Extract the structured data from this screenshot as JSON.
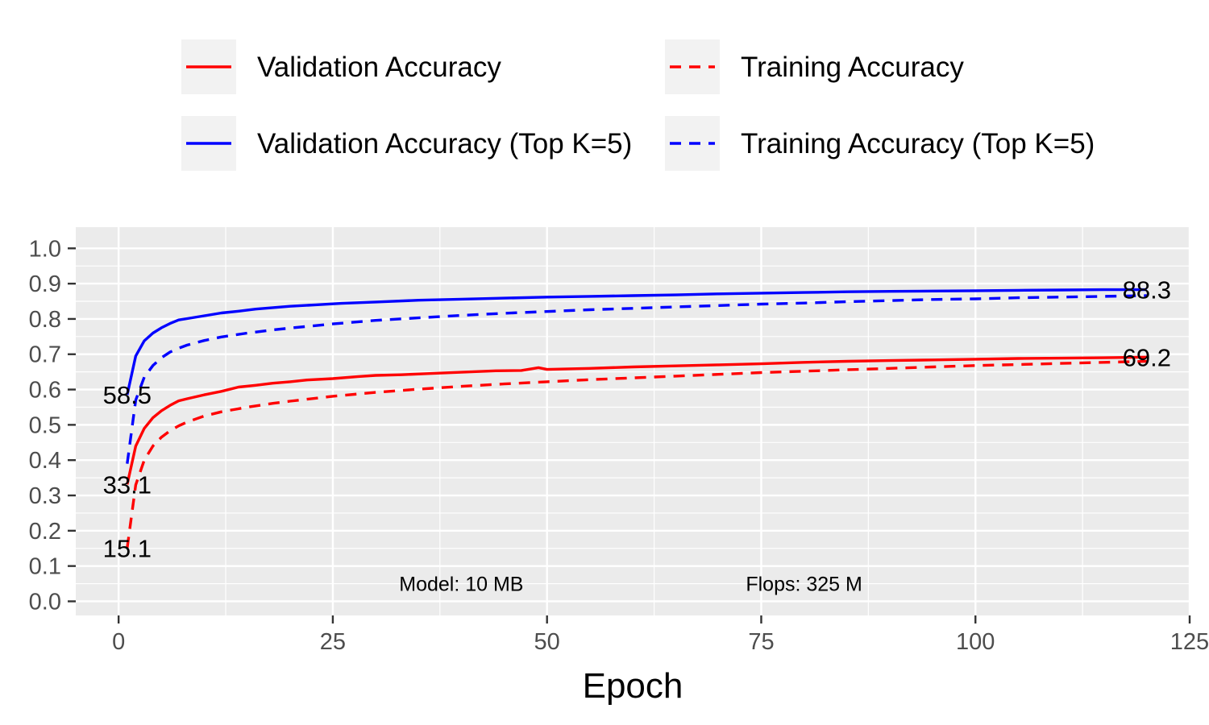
{
  "chart_data": {
    "type": "line",
    "xlabel": "Epoch",
    "ylabel": "",
    "xlim": [
      -5,
      125
    ],
    "ylim": [
      -0.04,
      1.06
    ],
    "x_ticks": [
      0,
      25,
      50,
      75,
      100,
      125
    ],
    "y_ticks": [
      0.0,
      0.1,
      0.2,
      0.3,
      0.4,
      0.5,
      0.6,
      0.7,
      0.8,
      0.9,
      1.0
    ],
    "x_tick_labels": [
      "0",
      "25",
      "50",
      "75",
      "100",
      "125"
    ],
    "y_tick_labels": [
      "0.0",
      "0.1",
      "0.2",
      "0.3",
      "0.4",
      "0.5",
      "0.6",
      "0.7",
      "0.8",
      "0.9",
      "1.0"
    ],
    "grid": true,
    "legend_position": "top",
    "series": [
      {
        "name": "Validation Accuracy",
        "color": "#ff0000",
        "dash": "solid",
        "points": [
          [
            1,
            0.331
          ],
          [
            2,
            0.44
          ],
          [
            3,
            0.49
          ],
          [
            4,
            0.52
          ],
          [
            5,
            0.54
          ],
          [
            6,
            0.555
          ],
          [
            7,
            0.568
          ],
          [
            8,
            0.574
          ],
          [
            10,
            0.585
          ],
          [
            12,
            0.595
          ],
          [
            14,
            0.607
          ],
          [
            16,
            0.612
          ],
          [
            18,
            0.618
          ],
          [
            20,
            0.622
          ],
          [
            22,
            0.627
          ],
          [
            25,
            0.631
          ],
          [
            28,
            0.637
          ],
          [
            30,
            0.64
          ],
          [
            33,
            0.642
          ],
          [
            36,
            0.645
          ],
          [
            40,
            0.649
          ],
          [
            44,
            0.653
          ],
          [
            47,
            0.654
          ],
          [
            49,
            0.662
          ],
          [
            50,
            0.657
          ],
          [
            55,
            0.66
          ],
          [
            60,
            0.664
          ],
          [
            65,
            0.667
          ],
          [
            70,
            0.67
          ],
          [
            75,
            0.673
          ],
          [
            80,
            0.677
          ],
          [
            85,
            0.68
          ],
          [
            90,
            0.682
          ],
          [
            95,
            0.684
          ],
          [
            100,
            0.686
          ],
          [
            105,
            0.688
          ],
          [
            110,
            0.689
          ],
          [
            115,
            0.69
          ],
          [
            120,
            0.692
          ]
        ]
      },
      {
        "name": "Training Accuracy",
        "color": "#ff0000",
        "dash": "dashed",
        "points": [
          [
            1,
            0.151
          ],
          [
            2,
            0.33
          ],
          [
            3,
            0.4
          ],
          [
            4,
            0.44
          ],
          [
            5,
            0.465
          ],
          [
            6,
            0.483
          ],
          [
            7,
            0.497
          ],
          [
            8,
            0.508
          ],
          [
            10,
            0.525
          ],
          [
            12,
            0.537
          ],
          [
            15,
            0.55
          ],
          [
            18,
            0.561
          ],
          [
            20,
            0.567
          ],
          [
            25,
            0.581
          ],
          [
            30,
            0.592
          ],
          [
            35,
            0.601
          ],
          [
            40,
            0.609
          ],
          [
            45,
            0.616
          ],
          [
            50,
            0.622
          ],
          [
            55,
            0.628
          ],
          [
            60,
            0.633
          ],
          [
            65,
            0.638
          ],
          [
            70,
            0.643
          ],
          [
            75,
            0.648
          ],
          [
            80,
            0.652
          ],
          [
            85,
            0.656
          ],
          [
            90,
            0.66
          ],
          [
            95,
            0.664
          ],
          [
            100,
            0.668
          ],
          [
            105,
            0.671
          ],
          [
            110,
            0.674
          ],
          [
            115,
            0.677
          ],
          [
            120,
            0.68
          ]
        ]
      },
      {
        "name": "Validation Accuracy (Top K=5)",
        "color": "#0000ff",
        "dash": "solid",
        "points": [
          [
            1,
            0.585
          ],
          [
            2,
            0.695
          ],
          [
            3,
            0.738
          ],
          [
            4,
            0.76
          ],
          [
            5,
            0.775
          ],
          [
            6,
            0.787
          ],
          [
            7,
            0.797
          ],
          [
            8,
            0.801
          ],
          [
            10,
            0.809
          ],
          [
            12,
            0.817
          ],
          [
            14,
            0.822
          ],
          [
            16,
            0.828
          ],
          [
            18,
            0.832
          ],
          [
            20,
            0.836
          ],
          [
            23,
            0.84
          ],
          [
            26,
            0.844
          ],
          [
            30,
            0.848
          ],
          [
            35,
            0.853
          ],
          [
            40,
            0.856
          ],
          [
            45,
            0.859
          ],
          [
            50,
            0.862
          ],
          [
            55,
            0.864
          ],
          [
            60,
            0.866
          ],
          [
            65,
            0.868
          ],
          [
            70,
            0.871
          ],
          [
            75,
            0.873
          ],
          [
            80,
            0.875
          ],
          [
            85,
            0.877
          ],
          [
            90,
            0.878
          ],
          [
            95,
            0.879
          ],
          [
            100,
            0.88
          ],
          [
            105,
            0.881
          ],
          [
            110,
            0.882
          ],
          [
            115,
            0.883
          ],
          [
            120,
            0.883
          ]
        ]
      },
      {
        "name": "Training Accuracy (Top K=5)",
        "color": "#0000ff",
        "dash": "dashed",
        "points": [
          [
            1,
            0.39
          ],
          [
            2,
            0.57
          ],
          [
            3,
            0.635
          ],
          [
            4,
            0.668
          ],
          [
            5,
            0.69
          ],
          [
            6,
            0.706
          ],
          [
            7,
            0.717
          ],
          [
            8,
            0.726
          ],
          [
            10,
            0.739
          ],
          [
            12,
            0.749
          ],
          [
            15,
            0.76
          ],
          [
            18,
            0.769
          ],
          [
            20,
            0.774
          ],
          [
            25,
            0.786
          ],
          [
            30,
            0.796
          ],
          [
            35,
            0.803
          ],
          [
            40,
            0.81
          ],
          [
            45,
            0.816
          ],
          [
            50,
            0.821
          ],
          [
            55,
            0.826
          ],
          [
            60,
            0.83
          ],
          [
            65,
            0.834
          ],
          [
            70,
            0.838
          ],
          [
            75,
            0.842
          ],
          [
            80,
            0.845
          ],
          [
            85,
            0.849
          ],
          [
            90,
            0.852
          ],
          [
            95,
            0.855
          ],
          [
            100,
            0.857
          ],
          [
            105,
            0.86
          ],
          [
            110,
            0.862
          ],
          [
            115,
            0.864
          ],
          [
            120,
            0.866
          ]
        ]
      }
    ],
    "value_labels": [
      {
        "text": "58.5",
        "x": 1,
        "y": 0.585
      },
      {
        "text": "33.1",
        "x": 1,
        "y": 0.331
      },
      {
        "text": "15.1",
        "x": 1,
        "y": 0.151
      },
      {
        "text": "88.3",
        "x": 120,
        "y": 0.883
      },
      {
        "text": "69.2",
        "x": 120,
        "y": 0.692
      }
    ],
    "annotations": [
      {
        "text": "Model: 10 MB",
        "x": 40,
        "y": 0.05
      },
      {
        "text": "Flops: 325 M",
        "x": 80,
        "y": 0.05
      }
    ]
  }
}
